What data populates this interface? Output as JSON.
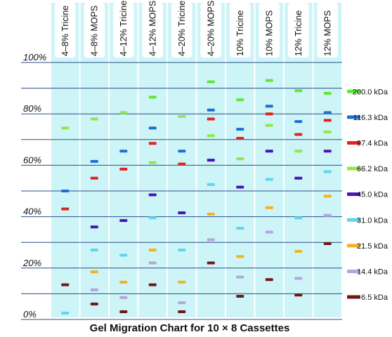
{
  "chart_data": {
    "type": "scatter",
    "title": "Gel Migration Chart for 10 × 8 Cassettes",
    "ylim": [
      0,
      100
    ],
    "y_ticks": [
      "0%",
      "20%",
      "40%",
      "60%",
      "80%",
      "100%"
    ],
    "grid": true,
    "legend_position": "right",
    "lanes": [
      "4–8% Tricine",
      "4–8% MOPS",
      "4–12% Tricine",
      "4–12% MOPS",
      "4–20% Tricine",
      "4–20% MOPS",
      "10% Tricine",
      "10% MOPS",
      "12% Tricine",
      "12% MOPS"
    ],
    "series": [
      {
        "name": "200.0 kDa",
        "color": "#5ee836",
        "values": [
          null,
          null,
          null,
          86.5,
          null,
          92.5,
          85.5,
          93,
          89,
          88
        ]
      },
      {
        "name": "116.3 kDa",
        "color": "#1f6fcf",
        "values": [
          50,
          61.5,
          65.5,
          74.5,
          65.5,
          81.5,
          74,
          83,
          77,
          80.5
        ]
      },
      {
        "name": "97.4 kDa",
        "color": "#e02424",
        "values": [
          43,
          55,
          58.5,
          68.5,
          60.5,
          78,
          70.5,
          80,
          72,
          77.5
        ]
      },
      {
        "name": "66.2 kDa",
        "color": "#8ee84a",
        "values": [
          74.5,
          78,
          80.5,
          61,
          79,
          71.5,
          62.5,
          75.5,
          65.5,
          73
        ]
      },
      {
        "name": "45.0 kDa",
        "color": "#4a12b8",
        "values": [
          null,
          36,
          38.5,
          48.5,
          41.5,
          62,
          51.5,
          65.5,
          55,
          65.5
        ]
      },
      {
        "name": "31.0 kDa",
        "color": "#5dd5ee",
        "values": [
          2.5,
          27,
          25,
          39.5,
          27,
          52.5,
          35.5,
          54.5,
          39.5,
          57.5
        ]
      },
      {
        "name": "21.5 kDa",
        "color": "#f5b21e",
        "values": [
          null,
          18.5,
          14.5,
          27,
          14.5,
          41,
          24.5,
          43.5,
          26.5,
          48
        ]
      },
      {
        "name": "14.4 kDa",
        "color": "#b3a6dd",
        "values": [
          null,
          11.5,
          8.5,
          22,
          6.5,
          31,
          16.5,
          34,
          16,
          40.5
        ]
      },
      {
        "name": "6.5 kDa",
        "color": "#6e1818",
        "values": [
          13.5,
          6,
          3,
          13.5,
          3,
          22,
          9,
          15.5,
          9.5,
          29.5
        ]
      }
    ]
  }
}
